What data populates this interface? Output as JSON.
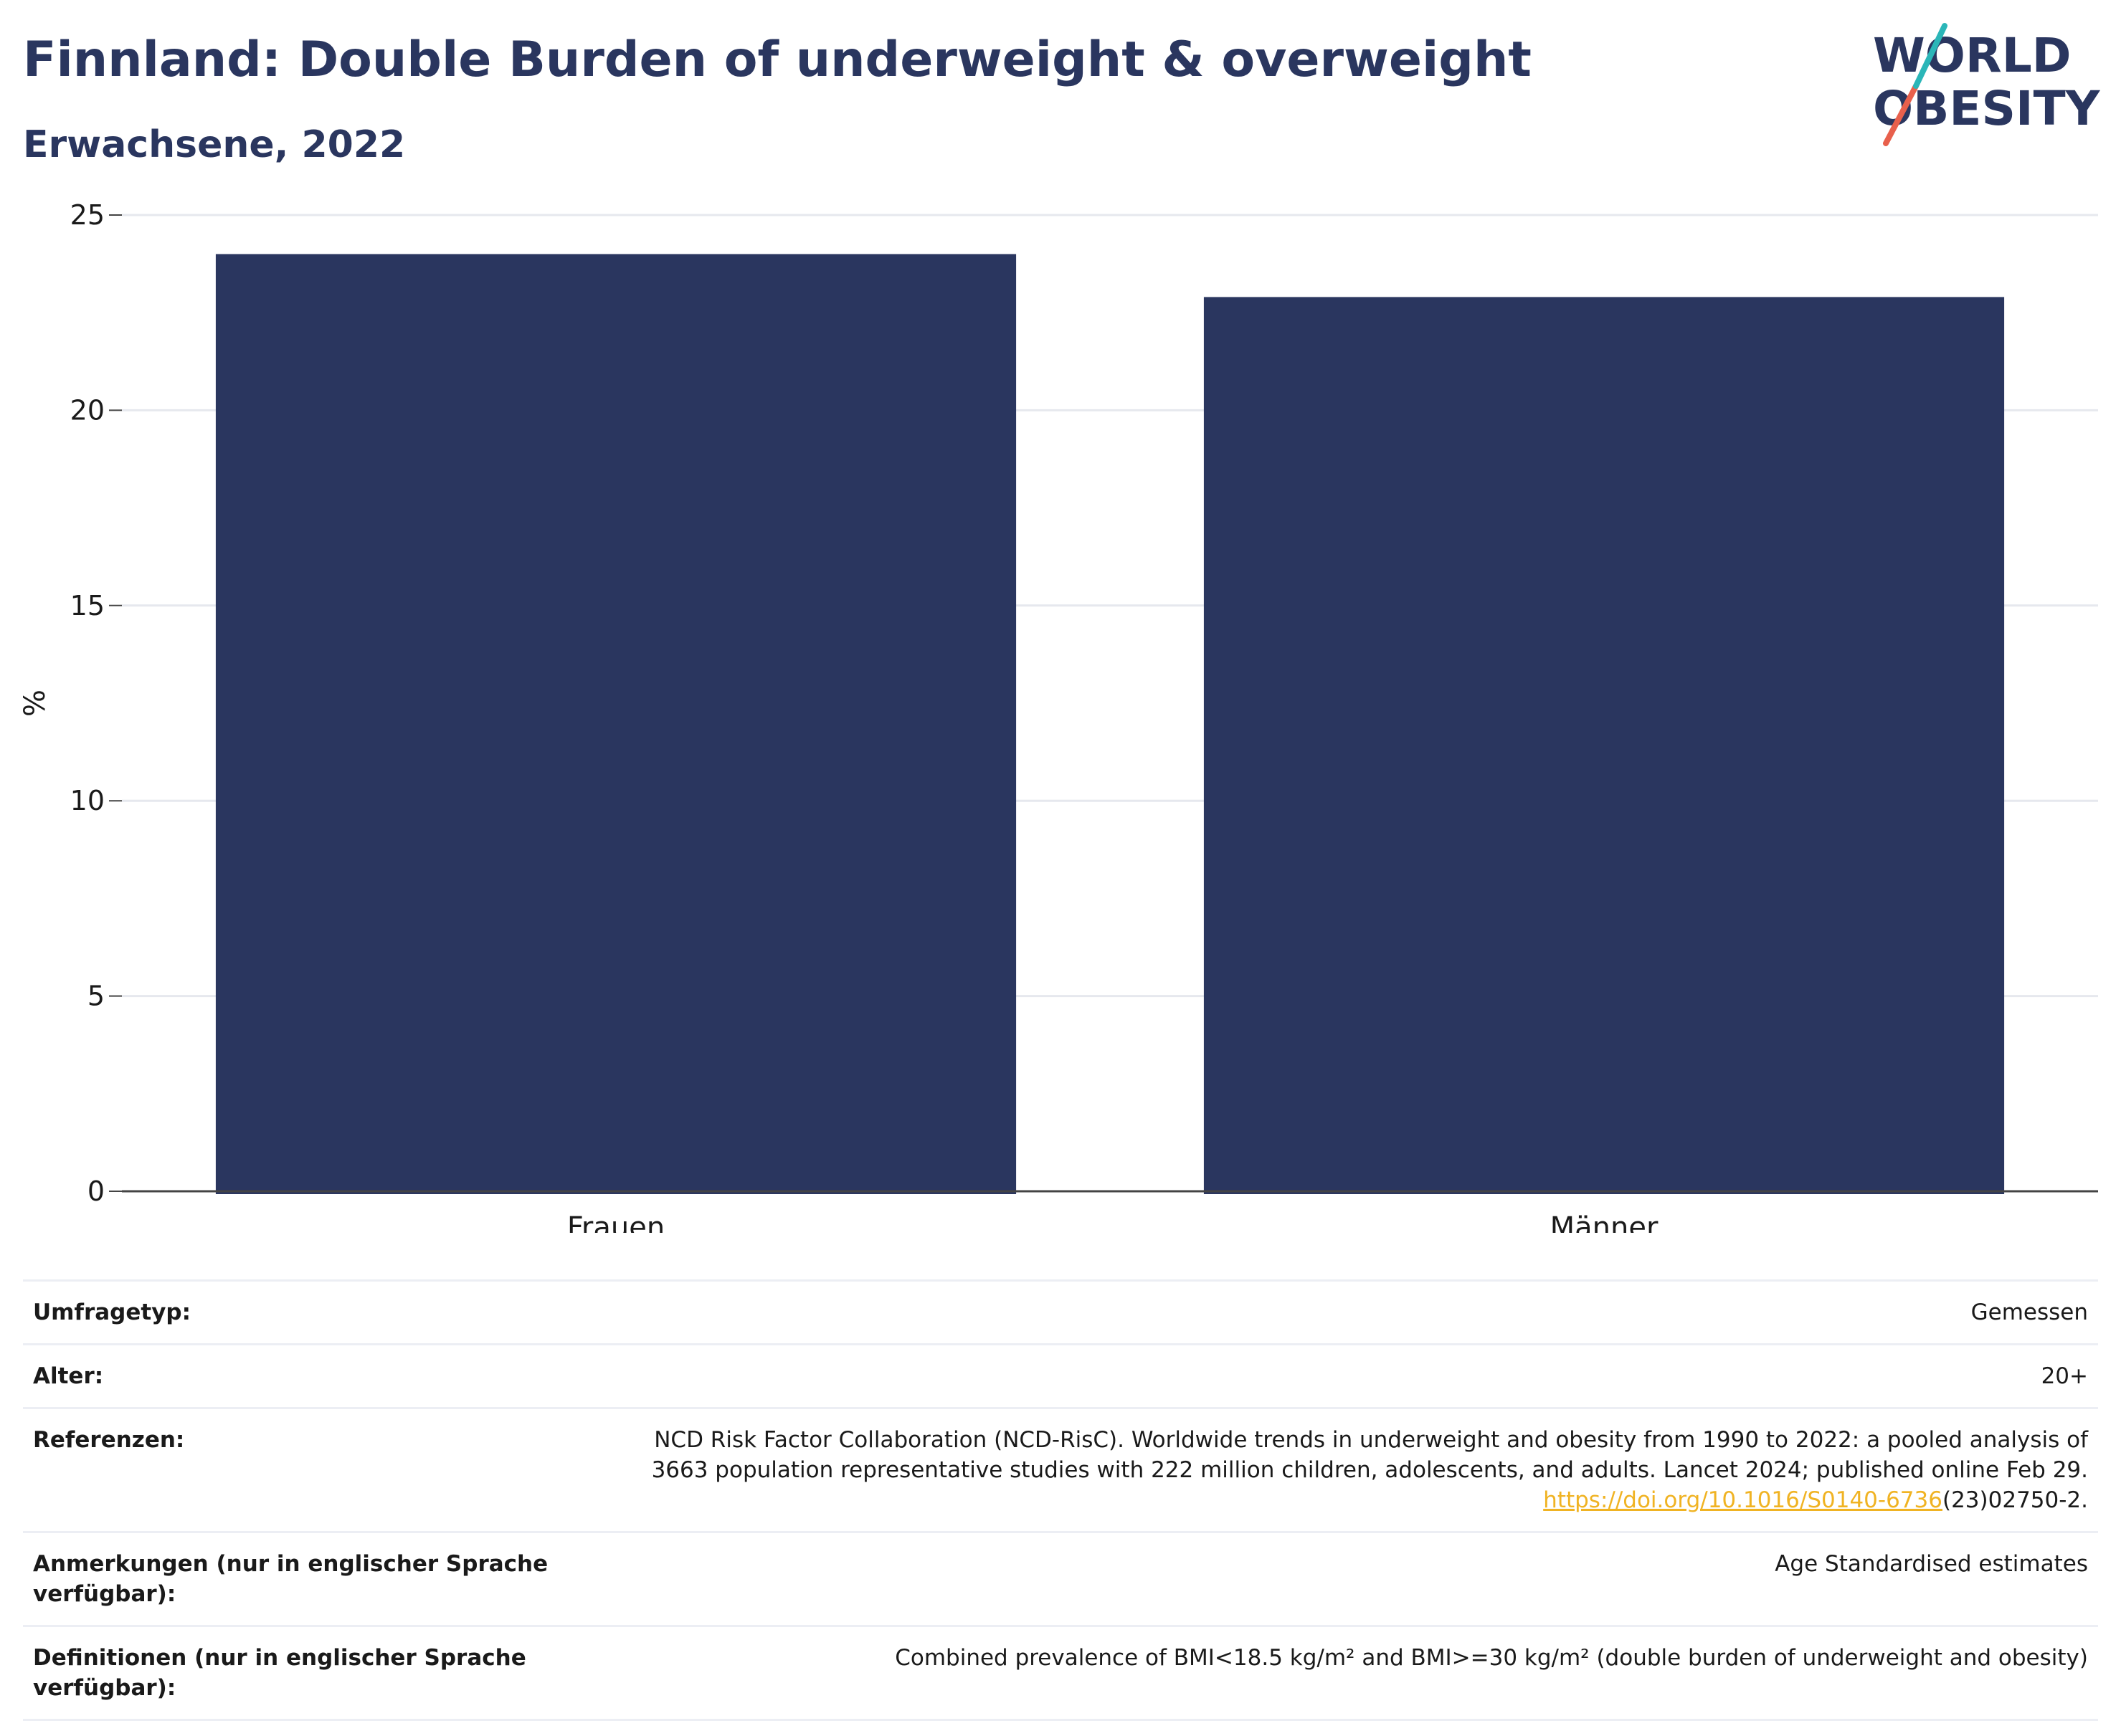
{
  "header": {
    "title": "Finnland: Double Burden of underweight & overweight",
    "subtitle": "Erwachsene, 2022",
    "logo_line1": "WORLD",
    "logo_line2": "OBESITY"
  },
  "chart_data": {
    "type": "bar",
    "categories": [
      "Frauen",
      "Männer"
    ],
    "values": [
      24.0,
      22.9
    ],
    "ylabel": "%",
    "xlabel": "",
    "ylim": [
      0,
      25
    ],
    "yticks": [
      0,
      5,
      10,
      15,
      20,
      25
    ],
    "grid": true,
    "bar_color": "#2a365f"
  },
  "meta": {
    "rows": [
      {
        "key": "Umfragetyp:",
        "value": "Gemessen"
      },
      {
        "key": "Alter:",
        "value": "20+"
      },
      {
        "key": "Referenzen:",
        "value_line1": "NCD Risk Factor Collaboration (NCD-RisC). Worldwide trends in underweight and obesity from 1990 to 2022: a pooled analysis of",
        "value_line2": "3663 population representative studies with 222 million children, adolescents, and adults. Lancet 2024; published online Feb 29.",
        "link": "https://doi.org/10.1016/S0140-6736",
        "link_suffix": "(23)02750-2."
      },
      {
        "key": "Anmerkungen (nur in englischer Sprache verfügbar):",
        "value": "Age Standardised estimates"
      },
      {
        "key": "Definitionen (nur in englischer Sprache verfügbar):",
        "value": "Combined prevalence of BMI<18.5 kg/m² and BMI>=30 kg/m² (double burden of underweight and obesity)"
      }
    ]
  },
  "colors": {
    "primary": "#2a365f",
    "accent_red": "#e8604c",
    "accent_teal": "#2bb6b8",
    "link": "#f0b323"
  }
}
